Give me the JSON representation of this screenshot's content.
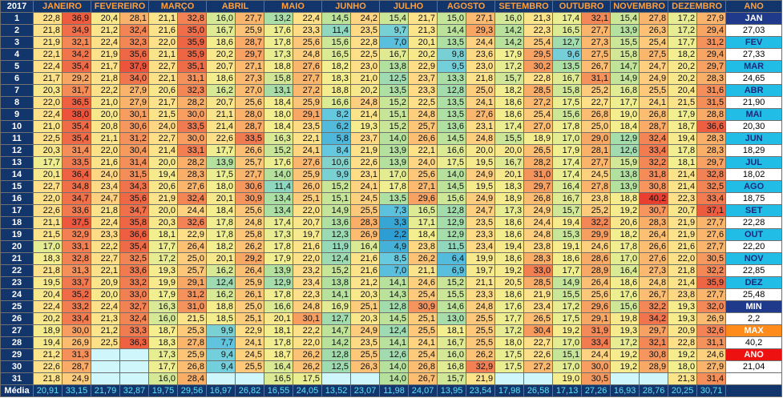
{
  "year": "2017",
  "months": [
    "JANEIRO",
    "FEVEREIRO",
    "MARÇO",
    "ABRIL",
    "MAIO",
    "JUNHO",
    "JULHO",
    "AGOSTO",
    "SETEMBRO",
    "OUTUBRO",
    "NOVEMBRO",
    "DEZEMBRO"
  ],
  "annual_header": "ANO",
  "rows": [
    {
      "day": "1",
      "v": [
        "22,8",
        "36,9",
        "20,4",
        "28,1",
        "21,1",
        "32,8",
        "16,0",
        "27,7",
        "13,2",
        "22,4",
        "14,5",
        "24,2",
        "15,4",
        "21,7",
        "15,0",
        "27,1",
        "16,0",
        "21,3",
        "17,4",
        "32,1",
        "15,4",
        "27,8",
        "17,2",
        "27,9"
      ],
      "annual": "JAN",
      "annual_bg": "#1f3a8a",
      "annual_fg": "#ffffff"
    },
    {
      "day": "2",
      "v": [
        "21,8",
        "34,9",
        "21,2",
        "32,4",
        "21,6",
        "35,0",
        "16,7",
        "25,9",
        "17,6",
        "23,3",
        "11,4",
        "23,5",
        "9,7",
        "21,3",
        "14,4",
        "29,3",
        "14,2",
        "22,3",
        "16,5",
        "27,7",
        "13,9",
        "26,3",
        "17,2",
        "29,4"
      ],
      "annual": "27,03"
    },
    {
      "day": "3",
      "v": [
        "21,9",
        "32,1",
        "22,4",
        "32,3",
        "22,0",
        "35,9",
        "18,6",
        "28,7",
        "17,8",
        "25,6",
        "15,6",
        "22,8",
        "7,0",
        "20,1",
        "13,5",
        "24,4",
        "14,2",
        "25,4",
        "12,7",
        "27,3",
        "15,5",
        "25,4",
        "17,7",
        "31,2"
      ],
      "annual": "FEV",
      "annual_bg": "#22bde6",
      "annual_fg": "#1d2a7a"
    },
    {
      "day": "4",
      "v": [
        "22,1",
        "34,2",
        "21,9",
        "35,6",
        "21,1",
        "35,9",
        "20,2",
        "29,7",
        "17,3",
        "24,8",
        "16,5",
        "22,5",
        "16,7",
        "20,2",
        "9,8",
        "23,6",
        "17,9",
        "29,5",
        "9,6",
        "27,5",
        "15,8",
        "27,5",
        "18,2",
        "29,4"
      ],
      "annual": "27,33"
    },
    {
      "day": "5",
      "v": [
        "22,4",
        "35,4",
        "21,7",
        "37,9",
        "22,7",
        "35,1",
        "20,7",
        "27,1",
        "18,8",
        "27,6",
        "18,2",
        "23,0",
        "13,8",
        "22,9",
        "9,5",
        "23,0",
        "17,2",
        "30,2",
        "13,5",
        "26,7",
        "14,7",
        "24,7",
        "20,2",
        "29,7"
      ],
      "annual": "MAR",
      "annual_bg": "#22bde6",
      "annual_fg": "#1d2a7a"
    },
    {
      "day": "6",
      "v": [
        "21,7",
        "29,2",
        "21,8",
        "34,0",
        "22,1",
        "31,1",
        "18,6",
        "27,3",
        "15,8",
        "27,7",
        "18,3",
        "21,0",
        "12,5",
        "23,7",
        "13,3",
        "21,8",
        "15,7",
        "22,8",
        "16,7",
        "31,1",
        "14,9",
        "24,9",
        "20,2",
        "28,3"
      ],
      "annual": "24,65"
    },
    {
      "day": "7",
      "v": [
        "20,3",
        "31,7",
        "22,2",
        "27,9",
        "20,6",
        "32,3",
        "16,2",
        "27,0",
        "13,1",
        "27,2",
        "18,8",
        "20,2",
        "13,5",
        "23,3",
        "12,8",
        "25,0",
        "18,2",
        "28,5",
        "15,8",
        "25,2",
        "16,8",
        "25,5",
        "20,4",
        "31,6"
      ],
      "annual": "ABR",
      "annual_bg": "#22bde6",
      "annual_fg": "#1d2a7a"
    },
    {
      "day": "8",
      "v": [
        "22,0",
        "36,5",
        "21,0",
        "27,9",
        "21,7",
        "28,2",
        "20,7",
        "25,6",
        "18,4",
        "25,9",
        "16,6",
        "24,8",
        "15,2",
        "22,5",
        "13,5",
        "24,1",
        "18,6",
        "27,2",
        "17,5",
        "22,7",
        "17,7",
        "24,1",
        "21,5",
        "31,5"
      ],
      "annual": "21,90"
    },
    {
      "day": "9",
      "v": [
        "22,4",
        "38,0",
        "20,0",
        "30,1",
        "21,5",
        "30,0",
        "21,1",
        "28,0",
        "18,0",
        "29,1",
        "8,2",
        "21,4",
        "15,1",
        "24,8",
        "13,5",
        "27,6",
        "18,6",
        "25,4",
        "15,6",
        "26,8",
        "19,0",
        "26,8",
        "17,9",
        "28,8"
      ],
      "annual": "MAI",
      "annual_bg": "#22bde6",
      "annual_fg": "#1d2a7a"
    },
    {
      "day": "10",
      "v": [
        "21,0",
        "35,4",
        "20,8",
        "30,6",
        "24,0",
        "33,5",
        "21,4",
        "28,7",
        "18,4",
        "23,5",
        "6,2",
        "19,3",
        "15,2",
        "25,7",
        "13,6",
        "23,1",
        "17,4",
        "27,0",
        "17,8",
        "25,0",
        "18,4",
        "28,7",
        "18,7",
        "36,6"
      ],
      "annual": "20,30"
    },
    {
      "day": "11",
      "v": [
        "22,5",
        "35,4",
        "21,1",
        "31,2",
        "22,7",
        "30,0",
        "22,6",
        "33,5",
        "16,3",
        "22,1",
        "5,8",
        "23,7",
        "14,0",
        "26,6",
        "14,5",
        "24,8",
        "15,5",
        "18,9",
        "17,0",
        "29,0",
        "12,9",
        "32,4",
        "19,4",
        "28,3"
      ],
      "annual": "JUN",
      "annual_bg": "#22bde6",
      "annual_fg": "#1d2a7a"
    },
    {
      "day": "12",
      "v": [
        "20,3",
        "31,4",
        "22,0",
        "30,4",
        "21,4",
        "33,1",
        "17,7",
        "26,6",
        "15,2",
        "24,1",
        "8,4",
        "21,9",
        "13,9",
        "22,1",
        "16,6",
        "20,0",
        "20,0",
        "26,5",
        "17,9",
        "28,1",
        "12,6",
        "33,4",
        "17,8",
        "28,3"
      ],
      "annual": "18,29"
    },
    {
      "day": "13",
      "v": [
        "17,7",
        "33,5",
        "21,6",
        "31,4",
        "20,0",
        "28,2",
        "13,9",
        "25,7",
        "17,6",
        "27,6",
        "10,6",
        "22,6",
        "13,9",
        "24,0",
        "17,5",
        "19,5",
        "16,7",
        "28,2",
        "17,4",
        "27,7",
        "15,9",
        "32,2",
        "18,1",
        "29,7"
      ],
      "annual": "JUL",
      "annual_bg": "#22bde6",
      "annual_fg": "#1d2a7a"
    },
    {
      "day": "14",
      "v": [
        "20,1",
        "36,4",
        "24,0",
        "31,5",
        "19,4",
        "28,3",
        "17,5",
        "27,7",
        "14,0",
        "25,9",
        "9,9",
        "23,1",
        "17,0",
        "25,6",
        "14,0",
        "24,9",
        "20,1",
        "31,0",
        "17,4",
        "24,5",
        "13,8",
        "31,8",
        "21,4",
        "32,8"
      ],
      "annual": "18,02"
    },
    {
      "day": "15",
      "v": [
        "22,7",
        "34,8",
        "23,4",
        "34,3",
        "20,6",
        "27,6",
        "18,0",
        "30,6",
        "11,4",
        "26,0",
        "15,2",
        "24,1",
        "17,8",
        "27,1",
        "14,5",
        "19,5",
        "18,3",
        "29,7",
        "16,4",
        "27,8",
        "13,9",
        "30,8",
        "21,4",
        "32,5"
      ],
      "annual": "AGO",
      "annual_bg": "#22bde6",
      "annual_fg": "#1d2a7a"
    },
    {
      "day": "16",
      "v": [
        "22,0",
        "34,7",
        "24,7",
        "35,6",
        "21,9",
        "32,4",
        "20,1",
        "30,9",
        "13,4",
        "25,1",
        "15,1",
        "24,5",
        "13,5",
        "29,6",
        "15,6",
        "24,9",
        "18,9",
        "26,8",
        "16,7",
        "23,8",
        "18,8",
        "40,2",
        "22,3",
        "33,4"
      ],
      "annual": "18,75"
    },
    {
      "day": "17",
      "v": [
        "22,6",
        "33,6",
        "21,8",
        "34,7",
        "20,0",
        "24,4",
        "18,4",
        "25,6",
        "13,4",
        "22,0",
        "14,9",
        "25,5",
        "7,3",
        "16,5",
        "12,8",
        "24,7",
        "17,3",
        "24,9",
        "15,7",
        "25,2",
        "19,2",
        "30,7",
        "20,7",
        "37,1"
      ],
      "annual": "SET",
      "annual_bg": "#22bde6",
      "annual_fg": "#1d2a7a"
    },
    {
      "day": "18",
      "v": [
        "21,1",
        "37,5",
        "22,4",
        "35,8",
        "20,3",
        "32,6",
        "17,8",
        "24,8",
        "17,4",
        "20,7",
        "13,6",
        "28,3",
        "3,3",
        "17,1",
        "12,9",
        "23,5",
        "18,6",
        "24,4",
        "19,4",
        "32,2",
        "20,6",
        "28,3",
        "21,9",
        "27,7"
      ],
      "annual": "22,28"
    },
    {
      "day": "19",
      "v": [
        "21,5",
        "32,9",
        "23,3",
        "36,6",
        "18,1",
        "22,9",
        "17,8",
        "25,8",
        "17,3",
        "19,7",
        "12,3",
        "26,9",
        "2,2",
        "18,4",
        "12,9",
        "23,3",
        "18,6",
        "24,8",
        "15,3",
        "29,9",
        "18,2",
        "26,4",
        "21,9",
        "27,6"
      ],
      "annual": "OUT",
      "annual_bg": "#22bde6",
      "annual_fg": "#1d2a7a"
    },
    {
      "day": "20",
      "v": [
        "17,0",
        "33,1",
        "22,2",
        "35,4",
        "17,7",
        "26,4",
        "18,2",
        "26,2",
        "17,8",
        "21,6",
        "11,9",
        "16,4",
        "4,9",
        "23,8",
        "11,5",
        "23,4",
        "19,4",
        "23,8",
        "19,1",
        "24,6",
        "17,8",
        "26,6",
        "21,6",
        "27,7"
      ],
      "annual": "22,20"
    },
    {
      "day": "21",
      "v": [
        "18,3",
        "32,8",
        "22,7",
        "32,5",
        "17,2",
        "25,0",
        "20,1",
        "29,2",
        "17,9",
        "22,0",
        "12,4",
        "21,6",
        "8,5",
        "26,2",
        "6,4",
        "19,9",
        "18,6",
        "28,3",
        "18,6",
        "28,6",
        "17,0",
        "27,6",
        "22,0",
        "30,5"
      ],
      "annual": "NOV",
      "annual_bg": "#22bde6",
      "annual_fg": "#1d2a7a"
    },
    {
      "day": "22",
      "v": [
        "21,8",
        "31,3",
        "22,1",
        "33,6",
        "19,3",
        "25,7",
        "16,2",
        "26,4",
        "13,9",
        "23,2",
        "15,2",
        "21,6",
        "7,0",
        "21,1",
        "6,9",
        "19,7",
        "19,2",
        "33,0",
        "17,7",
        "28,9",
        "16,4",
        "27,3",
        "21,8",
        "32,2"
      ],
      "annual": "22,85"
    },
    {
      "day": "23",
      "v": [
        "19,5",
        "33,7",
        "20,9",
        "33,2",
        "19,9",
        "29,1",
        "12,4",
        "25,9",
        "12,9",
        "23,4",
        "13,8",
        "21,2",
        "14,1",
        "24,6",
        "15,2",
        "21,1",
        "20,5",
        "28,5",
        "14,9",
        "26,4",
        "18,6",
        "24,8",
        "21,4",
        "35,9"
      ],
      "annual": "DEZ",
      "annual_bg": "#22bde6",
      "annual_fg": "#1d2a7a"
    },
    {
      "day": "24",
      "v": [
        "20,4",
        "35,2",
        "20,0",
        "33,0",
        "17,9",
        "31,2",
        "16,2",
        "26,1",
        "17,8",
        "22,3",
        "14,1",
        "20,3",
        "14,3",
        "25,4",
        "15,5",
        "23,3",
        "18,6",
        "21,9",
        "15,5",
        "25,6",
        "17,6",
        "26,7",
        "23,8",
        "27,7"
      ],
      "annual": "25,48"
    },
    {
      "day": "25",
      "v": [
        "22,4",
        "33,2",
        "22,4",
        "32,7",
        "16,3",
        "31,0",
        "18,8",
        "25,0",
        "16,6",
        "24,8",
        "16,9",
        "25,1",
        "12,8",
        "30,9",
        "14,6",
        "24,8",
        "17,6",
        "23,4",
        "17,2",
        "29,6",
        "15,6",
        "32,2",
        "19,3",
        "32,0"
      ],
      "annual": "MIN",
      "annual_bg": "#1f3a8a",
      "annual_fg": "#ffffff",
      "bold": true
    },
    {
      "day": "26",
      "v": [
        "20,2",
        "33,4",
        "21,3",
        "32,4",
        "16,0",
        "21,5",
        "18,5",
        "25,1",
        "20,1",
        "30,1",
        "12,7",
        "20,3",
        "14,5",
        "25,1",
        "13,0",
        "25,5",
        "17,7",
        "26,5",
        "17,5",
        "29,1",
        "19,8",
        "34,2",
        "19,3",
        "26,9"
      ],
      "annual": "2,2"
    },
    {
      "day": "27",
      "v": [
        "18,9",
        "30,0",
        "21,2",
        "33,3",
        "18,7",
        "25,3",
        "9,9",
        "22,9",
        "18,1",
        "22,2",
        "14,7",
        "24,9",
        "12,4",
        "25,5",
        "18,1",
        "25,5",
        "17,2",
        "30,4",
        "19,2",
        "31,9",
        "19,3",
        "29,7",
        "20,9",
        "32,6"
      ],
      "annual": "MAX",
      "annual_bg": "#ff8c1a",
      "annual_fg": "#ffffff",
      "bold": true
    },
    {
      "day": "28",
      "v": [
        "19,4",
        "26,9",
        "22,5",
        "36,3",
        "18,3",
        "27,8",
        "7,7",
        "24,1",
        "17,8",
        "22,0",
        "14,2",
        "23,5",
        "14,1",
        "24,1",
        "16,7",
        "25,5",
        "18,0",
        "22,7",
        "17,0",
        "33,4",
        "17,2",
        "32,1",
        "22,8",
        "31,1"
      ],
      "annual": "40,2"
    },
    {
      "day": "29",
      "v": [
        "21,2",
        "31,3",
        "",
        "",
        "17,3",
        "25,9",
        "9,4",
        "24,5",
        "18,7",
        "26,2",
        "12,8",
        "25,5",
        "12,6",
        "25,4",
        "16,0",
        "26,2",
        "17,5",
        "22,6",
        "15,1",
        "24,4",
        "19,2",
        "30,8",
        "19,2",
        "24,6"
      ],
      "annual": "ANO",
      "annual_bg": "#ee1111",
      "annual_fg": "#ffffff",
      "bold": true
    },
    {
      "day": "30",
      "v": [
        "22,6",
        "28,7",
        "",
        "",
        "17,7",
        "26,8",
        "9,4",
        "25,5",
        "16,4",
        "26,2",
        "12,5",
        "26,3",
        "14,0",
        "26,8",
        "16,8",
        "32,9",
        "17,5",
        "27,2",
        "17,0",
        "30,0",
        "19,2",
        "28,9",
        "18,0",
        "27,9"
      ],
      "annual": "21,04"
    },
    {
      "day": "31",
      "v": [
        "21,8",
        "24,9",
        "",
        "",
        "16,0",
        "28,4",
        "",
        "",
        "16,5",
        "17,5",
        "",
        "",
        "14,0",
        "26,7",
        "15,7",
        "21,9",
        "",
        "",
        "19,0",
        "30,5",
        "",
        "",
        "21,3",
        "31,4"
      ],
      "annual": ""
    }
  ],
  "footer": {
    "label": "Média",
    "values": [
      "20,91",
      "33,15",
      "21,79",
      "32,87",
      "19,75",
      "29,56",
      "16,97",
      "26,82",
      "16,55",
      "24,05",
      "13,52",
      "23,07",
      "11,98",
      "24,07",
      "13,95",
      "23,54",
      "17,98",
      "26,58",
      "17,13",
      "27,26",
      "16,93",
      "28,76",
      "20,25",
      "30,71"
    ],
    "annual": ""
  }
}
